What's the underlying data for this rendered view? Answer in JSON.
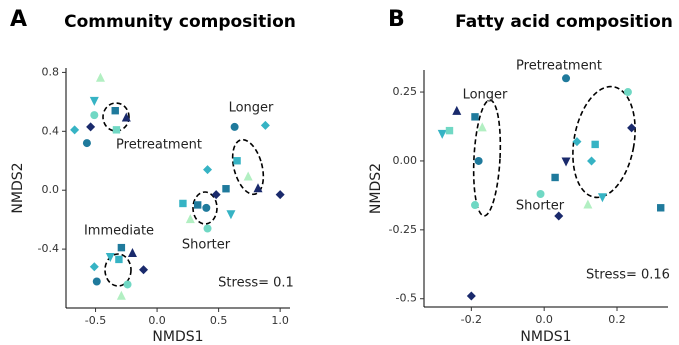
{
  "chart_data": [
    {
      "type": "scatter",
      "panel": "A",
      "title": "Community composition",
      "xlabel": "NMDS1",
      "ylabel": "NMDS2",
      "xlim": [
        -0.74,
        1.08
      ],
      "ylim": [
        -0.8,
        0.83
      ],
      "xticks": [
        -0.5,
        {
          "value": 0,
          "label": "0.0"
        },
        0.5,
        {
          "value": 1,
          "label": "1.0"
        }
      ],
      "yticks": [
        -0.4,
        {
          "value": 0,
          "label": "0.0"
        },
        0.4,
        0.8
      ],
      "annotations": [
        "Pretreatment",
        "Longer",
        "Shorter",
        "Immediate",
        "Stress= 0.1"
      ],
      "series": [
        {
          "color": "#1a2a6c",
          "markers": [
            "triangle",
            "diamond",
            "triangle",
            "diamond",
            "diamond",
            "triangle",
            "diamond"
          ],
          "x": [
            -0.25,
            -0.54,
            0.82,
            1.0,
            0.48,
            -0.2,
            -0.11
          ],
          "y": [
            0.49,
            0.43,
            0.01,
            -0.03,
            -0.03,
            -0.43,
            -0.54
          ]
        },
        {
          "color": "#1f7a9c",
          "markers": [
            "square",
            "circle",
            "circle",
            "square",
            "square",
            "circle",
            "square",
            "circle"
          ],
          "x": [
            -0.34,
            -0.57,
            0.63,
            0.56,
            0.33,
            0.4,
            -0.29,
            -0.49
          ],
          "y": [
            0.54,
            0.32,
            0.43,
            0.01,
            -0.1,
            -0.12,
            -0.39,
            -0.62
          ]
        },
        {
          "color": "#36b3c4",
          "markers": [
            "invtriangle",
            "diamond",
            "diamond",
            "square",
            "diamond",
            "square",
            "invtriangle",
            "invtriangle",
            "square",
            "diamond"
          ],
          "x": [
            -0.51,
            -0.67,
            0.88,
            0.65,
            0.41,
            0.21,
            0.6,
            -0.38,
            -0.31,
            -0.51
          ],
          "y": [
            0.61,
            0.41,
            0.44,
            0.2,
            0.14,
            -0.09,
            -0.16,
            -0.45,
            -0.47,
            -0.52
          ]
        },
        {
          "color": "#70d8c4",
          "markers": [
            "circle",
            "square",
            "circle",
            "circle"
          ],
          "x": [
            -0.51,
            -0.33,
            0.41,
            -0.24
          ],
          "y": [
            0.51,
            0.41,
            -0.26,
            -0.64
          ]
        },
        {
          "color": "#b2efc2",
          "markers": [
            "triangle",
            "triangle",
            "triangle",
            "triangle"
          ],
          "x": [
            -0.46,
            0.74,
            0.27,
            -0.29
          ],
          "y": [
            0.76,
            0.09,
            -0.2,
            -0.72
          ]
        }
      ]
    },
    {
      "type": "scatter",
      "panel": "B",
      "title": "Fatty acid composition",
      "xlabel": "NMDS1",
      "ylabel": "NMDS2",
      "xlim": [
        -0.33,
        0.34
      ],
      "ylim": [
        -0.53,
        0.33
      ],
      "xticks": [
        -0.2,
        {
          "value": 0,
          "label": "0.0"
        },
        0.2
      ],
      "yticks": [
        -0.5,
        -0.25,
        {
          "value": 0,
          "label": "0.00"
        },
        0.25
      ],
      "annotations": [
        "Longer",
        "Pretreatment",
        "Shorter",
        "Stress= 0.16"
      ],
      "series": [
        {
          "color": "#1a2a6c",
          "markers": [
            "triangle",
            "diamond",
            "diamond",
            "invtriangle",
            "diamond"
          ],
          "x": [
            -0.24,
            -0.2,
            0.24,
            0.06,
            0.04
          ],
          "y": [
            0.18,
            -0.49,
            0.12,
            0.0,
            -0.2
          ]
        },
        {
          "color": "#1f7a9c",
          "markers": [
            "square",
            "circle",
            "circle",
            "square",
            "square"
          ],
          "x": [
            -0.19,
            -0.18,
            0.06,
            0.03,
            0.32
          ],
          "y": [
            0.16,
            0.0,
            0.3,
            -0.06,
            -0.17
          ]
        },
        {
          "color": "#36b3c4",
          "markers": [
            "invtriangle",
            "square",
            "diamond",
            "diamond",
            "invtriangle"
          ],
          "x": [
            -0.28,
            0.14,
            0.09,
            0.13,
            0.16
          ],
          "y": [
            0.1,
            0.06,
            0.07,
            0.0,
            -0.13
          ]
        },
        {
          "color": "#70d8c4",
          "markers": [
            "square",
            "circle",
            "circle",
            "circle"
          ],
          "x": [
            -0.26,
            -0.19,
            0.23,
            -0.01
          ],
          "y": [
            0.11,
            -0.16,
            0.25,
            -0.12
          ]
        },
        {
          "color": "#b2efc2",
          "markers": [
            "triangle",
            "triangle"
          ],
          "x": [
            -0.17,
            0.12
          ],
          "y": [
            0.12,
            -0.16
          ]
        }
      ]
    }
  ]
}
